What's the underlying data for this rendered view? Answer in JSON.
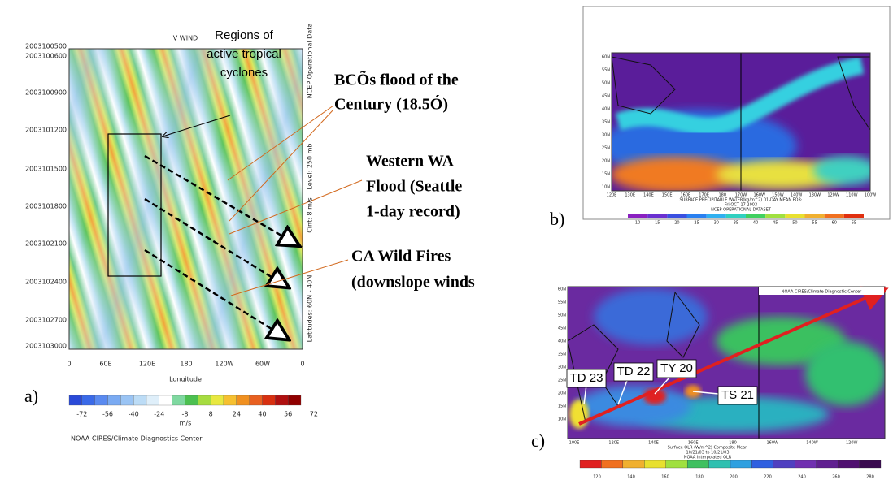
{
  "panel_a": {
    "label": "a)",
    "title": "V WIND",
    "y_labels": [
      "2003100500",
      "2003100600",
      "2003100900",
      "2003101200",
      "2003101500",
      "2003101800",
      "2003102100",
      "2003102400",
      "2003102700",
      "2003103000"
    ],
    "x_labels": [
      "0",
      "60E",
      "120E",
      "180",
      "120W",
      "60W",
      "0"
    ],
    "x_axis_title": "Longitude",
    "side_labels": [
      "NCEP Operational Data",
      "Level: 250 mb",
      "Cint: 8 m/s",
      "Latitudes: 60N - 40N"
    ],
    "colorbar_ticks": [
      "-72",
      "-56",
      "-40",
      "-24",
      "-8",
      "8",
      "24",
      "40",
      "56",
      "72"
    ],
    "colorbar_unit": "m/s",
    "credit": "NOAA-CIRES/Climate Diagnostics Center"
  },
  "annotations": {
    "cyclones": [
      "Regions of",
      "active tropical",
      "cyclones"
    ],
    "bc_flood": [
      "BCÕs flood of the",
      "Century (18.5Ó)"
    ],
    "western_wa": [
      "Western WA",
      "Flood (Seattle",
      "1-day record)"
    ],
    "ca_fires": [
      "CA Wild Fires",
      "(downslope winds"
    ]
  },
  "panel_b": {
    "label": "b)",
    "lat_labels": [
      "60N",
      "55N",
      "50N",
      "45N",
      "40N",
      "35N",
      "30N",
      "25N",
      "20N",
      "15N",
      "10N"
    ],
    "lon_labels": [
      "120E",
      "130E",
      "140E",
      "150E",
      "160E",
      "170E",
      "180",
      "170W",
      "160W",
      "150W",
      "140W",
      "130W",
      "120W",
      "110W",
      "100W"
    ],
    "caption": [
      "SURFACE PRECIPITABLE WATER(kg/m^2) 01-DAY MEAN FOR:",
      "Fri OCT 17 2003",
      "NCEP OPERATIONAL DATASET"
    ],
    "colorbar_ticks": [
      "10",
      "15",
      "20",
      "25",
      "30",
      "35",
      "40",
      "45",
      "50",
      "55",
      "60",
      "65"
    ]
  },
  "panel_c": {
    "label": "c)",
    "credit": "NOAA-CIRES/Climate Diagnostic Center",
    "lat_labels": [
      "60N",
      "55N",
      "50N",
      "45N",
      "40N",
      "35N",
      "30N",
      "25N",
      "20N",
      "15N",
      "10N"
    ],
    "lon_labels": [
      "100E",
      "120E",
      "140E",
      "160E",
      "180",
      "160W",
      "140W",
      "120W"
    ],
    "caption": [
      "Surface OLR (W/m^2) Composite Mean",
      "10/21/03 to 10/21/03",
      "NOAA Interpolated OLR"
    ],
    "colorbar_ticks": [
      "120",
      "140",
      "160",
      "180",
      "200",
      "220",
      "240",
      "260",
      "280"
    ],
    "storms": [
      "TD 23",
      "TD 22",
      "TY 20",
      "TS 21"
    ]
  }
}
